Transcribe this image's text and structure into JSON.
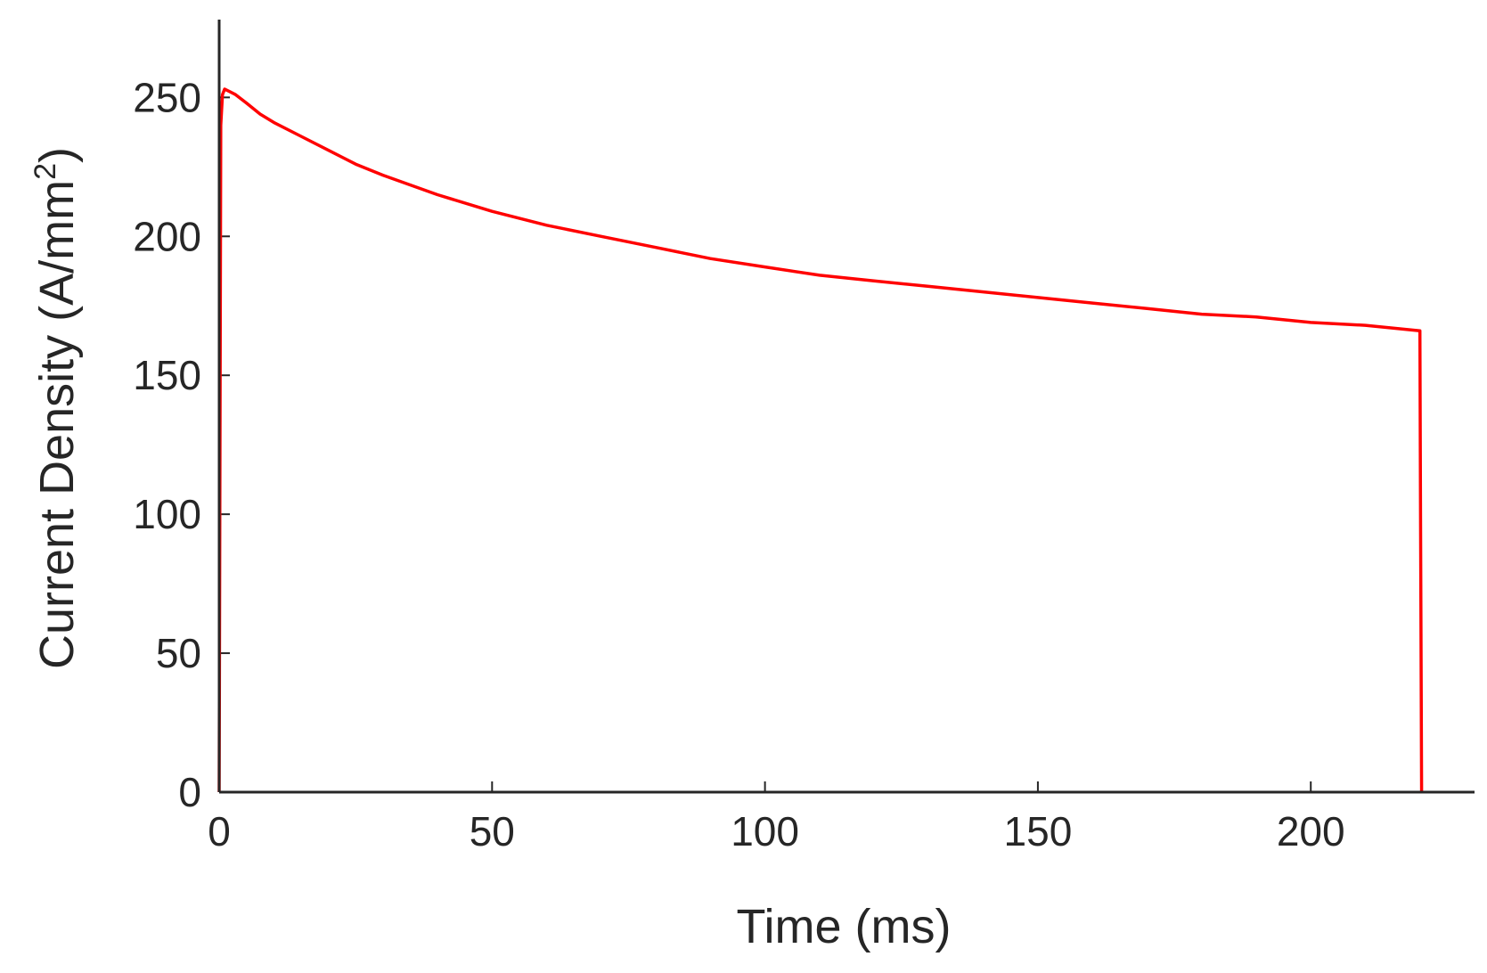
{
  "chart_data": {
    "type": "line",
    "xlabel": "Time (ms)",
    "ylabel_main": "Current Density (A/mm",
    "ylabel_sup": "2",
    "ylabel_close": ")",
    "xlim": [
      0,
      230
    ],
    "ylim": [
      0,
      278
    ],
    "xticks": [
      0,
      50,
      100,
      150,
      200
    ],
    "yticks": [
      0,
      50,
      100,
      150,
      200,
      250
    ],
    "grid": false,
    "box": false,
    "series": [
      {
        "color": "#ff0000",
        "x": [
          0,
          0.3,
          0.6,
          1,
          2,
          3,
          5,
          7.5,
          10,
          15,
          20,
          25,
          30,
          40,
          50,
          60,
          70,
          80,
          90,
          100,
          110,
          120,
          130,
          140,
          150,
          160,
          170,
          180,
          190,
          200,
          210,
          220,
          220.1,
          220.3
        ],
        "y": [
          0,
          240,
          251,
          253,
          252,
          251,
          248,
          244,
          241,
          236,
          231,
          226,
          222,
          215,
          209,
          204,
          200,
          196,
          192,
          189,
          186,
          184,
          182,
          180,
          178,
          176,
          174,
          172,
          171,
          169,
          168,
          166,
          100,
          0
        ]
      }
    ]
  }
}
